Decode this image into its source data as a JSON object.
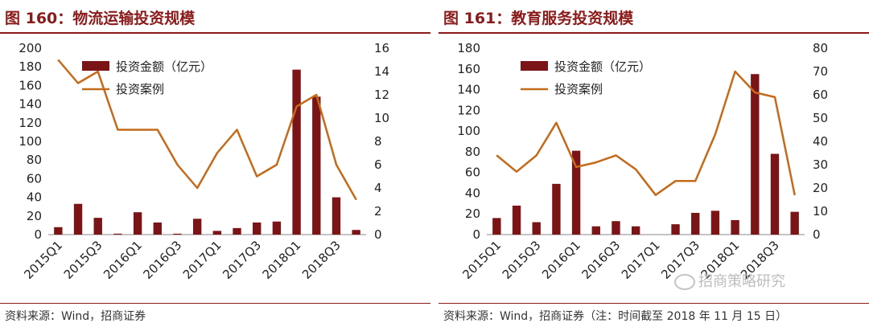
{
  "charts": [
    {
      "title": "图 160：物流运输投资规模",
      "source": "资料来源：Wind，招商证券",
      "legend": {
        "bar": "投资金额（亿元）",
        "line": "投资案例"
      },
      "chart_data": {
        "type": "bar",
        "categories": [
          "2015Q1",
          "2015Q2",
          "2015Q3",
          "2015Q4",
          "2016Q1",
          "2016Q2",
          "2016Q3",
          "2016Q4",
          "2017Q1",
          "2017Q2",
          "2017Q3",
          "2017Q4",
          "2018Q1",
          "2018Q2",
          "2018Q3",
          "2018Q4"
        ],
        "xtick_labels": [
          "2015Q1",
          "2015Q3",
          "2016Q1",
          "2016Q3",
          "2017Q1",
          "2017Q3",
          "2018Q1",
          "2018Q3"
        ],
        "series": [
          {
            "name": "投资金额（亿元）",
            "type": "bar",
            "axis": "left",
            "values": [
              8,
              33,
              18,
              1,
              24,
              13,
              1,
              17,
              4,
              7,
              13,
              14,
              177,
              148,
              40,
              5
            ]
          },
          {
            "name": "投资案例",
            "type": "line",
            "axis": "right",
            "values": [
              15,
              13,
              14,
              9,
              9,
              9,
              6,
              4,
              7,
              9,
              5,
              6,
              11,
              12,
              6,
              3
            ]
          }
        ],
        "ylim": [
          0,
          200
        ],
        "yticks": [
          0,
          20,
          40,
          60,
          80,
          100,
          120,
          140,
          160,
          180,
          200
        ],
        "y2lim": [
          0,
          16
        ],
        "y2ticks": [
          0,
          2,
          4,
          6,
          8,
          10,
          12,
          14,
          16
        ],
        "legend_position": "top-left",
        "colors": {
          "bar": "#7a1416",
          "line": "#c46a1b"
        }
      }
    },
    {
      "title": "图 161：教育服务投资规模",
      "source": "资料来源：Wind，招商证券（注：时间截至 2018 年 11 月 15 日）",
      "legend": {
        "bar": "投资金额（亿元）",
        "line": "投资案例"
      },
      "chart_data": {
        "type": "bar",
        "categories": [
          "2015Q1",
          "2015Q2",
          "2015Q3",
          "2015Q4",
          "2016Q1",
          "2016Q2",
          "2016Q3",
          "2016Q4",
          "2017Q1",
          "2017Q2",
          "2017Q3",
          "2017Q4",
          "2018Q1",
          "2018Q2",
          "2018Q3",
          "2018Q4"
        ],
        "xtick_labels": [
          "2015Q1",
          "2015Q3",
          "2016Q1",
          "2016Q3",
          "2017Q1",
          "2017Q3",
          "2018Q1",
          "2018Q3"
        ],
        "series": [
          {
            "name": "投资金额（亿元）",
            "type": "bar",
            "axis": "left",
            "values": [
              16,
              28,
              12,
              49,
              81,
              8,
              13,
              8,
              0,
              10,
              21,
              23,
              14,
              155,
              78,
              22
            ]
          },
          {
            "name": "投资案例",
            "type": "line",
            "axis": "right",
            "values": [
              34,
              27,
              34,
              48,
              29,
              31,
              34,
              28,
              17,
              23,
              23,
              43,
              70,
              61,
              59,
              17
            ]
          }
        ],
        "ylim": [
          0,
          180
        ],
        "yticks": [
          0,
          20,
          40,
          60,
          80,
          100,
          120,
          140,
          160,
          180
        ],
        "y2lim": [
          0,
          80
        ],
        "y2ticks": [
          0,
          10,
          20,
          30,
          40,
          50,
          60,
          70,
          80
        ],
        "legend_position": "top-left",
        "colors": {
          "bar": "#7a1416",
          "line": "#c46a1b"
        }
      }
    }
  ],
  "watermark": "招商策略研究"
}
